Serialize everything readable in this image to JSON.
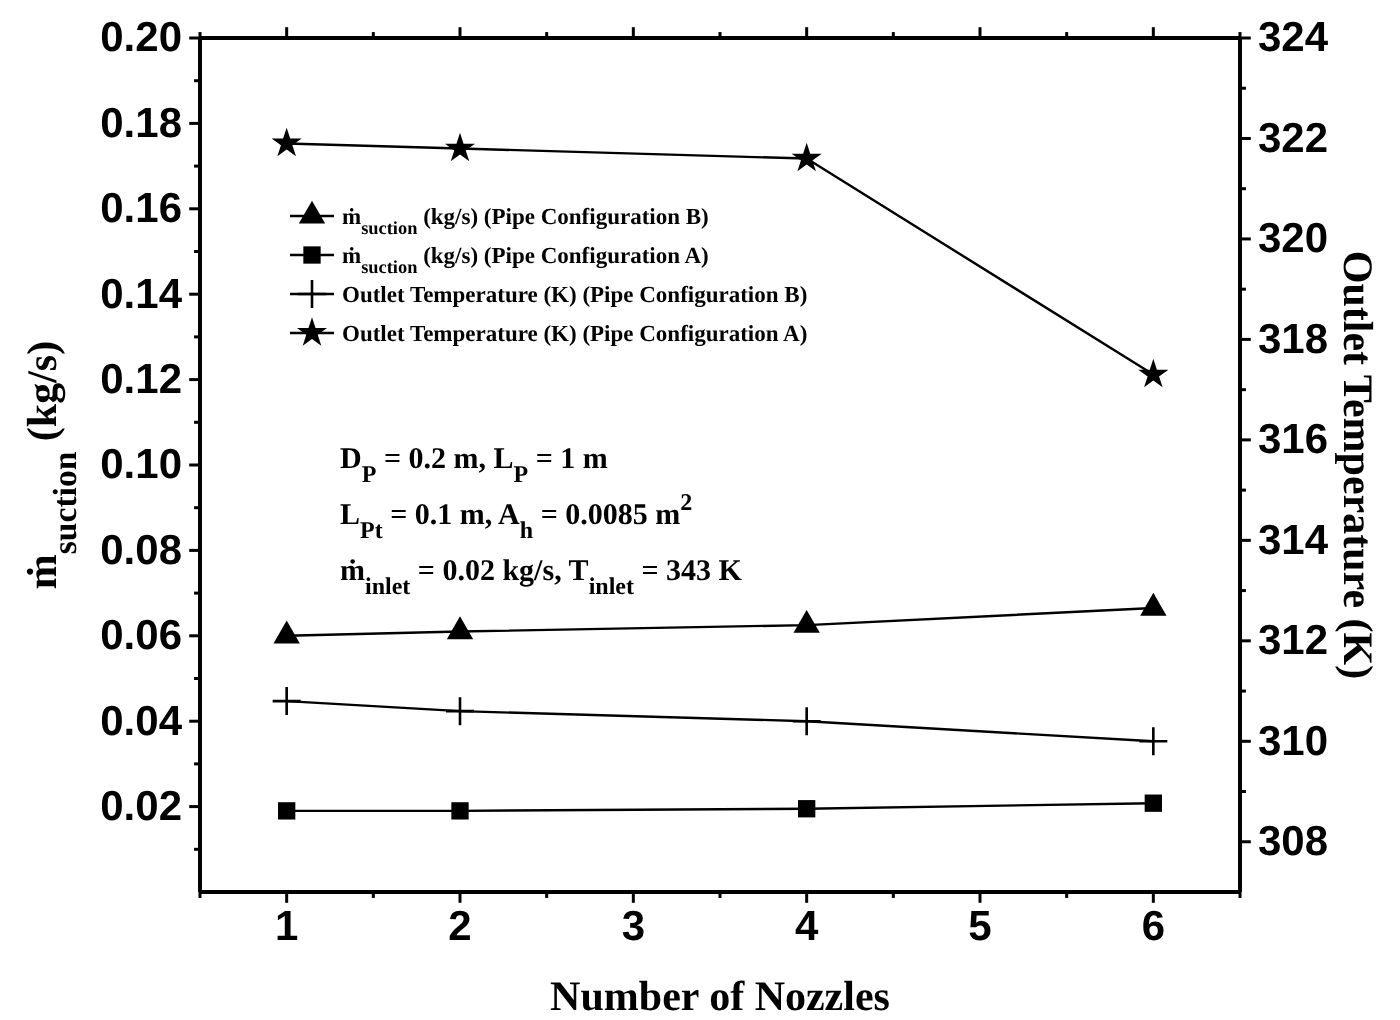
{
  "chart_data": {
    "type": "line",
    "xlabel": "Number of Nozzles",
    "ylabel": "ṁ$_{suction}$ (kg/s)",
    "y2label": "Outlet Temperature (K)",
    "x": [
      1,
      2,
      4,
      6
    ],
    "xlim": [
      0.5,
      6.5
    ],
    "xticks": [
      {
        "value": 0.5,
        "label": null
      },
      1,
      {
        "value": 1.5,
        "label": null
      },
      2,
      {
        "value": 2.5,
        "label": null
      },
      3,
      {
        "value": 3.5,
        "label": null
      },
      4,
      {
        "value": 4.5,
        "label": null
      },
      5,
      {
        "value": 5.5,
        "label": null
      },
      6,
      {
        "value": 6.5,
        "label": null
      }
    ],
    "ylim": [
      0,
      0.2
    ],
    "yticks": [
      {
        "value": 0.01,
        "label": null
      },
      0.02,
      {
        "value": 0.03,
        "label": null
      },
      0.04,
      {
        "value": 0.05,
        "label": null
      },
      0.06,
      {
        "value": 0.07,
        "label": null
      },
      0.08,
      {
        "value": 0.09,
        "label": null
      },
      {
        "value": 0.1,
        "label": "0.10"
      },
      {
        "value": 0.11,
        "label": null
      },
      0.12,
      {
        "value": 0.13,
        "label": null
      },
      0.14,
      {
        "value": 0.15,
        "label": null
      },
      0.16,
      {
        "value": 0.17,
        "label": null
      },
      0.18,
      {
        "value": 0.19,
        "label": null
      },
      {
        "value": 0.2,
        "label": "0.20"
      }
    ],
    "y2lim": [
      307,
      324
    ],
    "y2ticks": [
      308,
      {
        "value": 309,
        "label": null
      },
      310,
      {
        "value": 311,
        "label": null
      },
      312,
      {
        "value": 313,
        "label": null
      },
      314,
      {
        "value": 315,
        "label": null
      },
      316,
      {
        "value": 317,
        "label": null
      },
      318,
      {
        "value": 319,
        "label": null
      },
      320,
      {
        "value": 321,
        "label": null
      },
      322,
      {
        "value": 323,
        "label": null
      },
      324
    ],
    "series": [
      {
        "name": "ṁ$_{suction}$ (kg/s) (Pipe Configuration B)",
        "color": "#000000",
        "marker": "triangle",
        "values": [
          0.06,
          0.061,
          0.0625,
          0.0665
        ]
      },
      {
        "name": "ṁ$_{suction}$ (kg/s) (Pipe Configuration A)",
        "color": "#000000",
        "marker": "square",
        "values": [
          0.019,
          0.019,
          0.0195,
          0.0208
        ]
      },
      {
        "name": "Outlet Temperature (K) (Pipe Configuration B)",
        "color": "#000000",
        "marker": "cross",
        "axis": "y2",
        "values": [
          310.8,
          310.6,
          310.4,
          310.0
        ]
      },
      {
        "name": "Outlet Temperature (K) (Pipe Configuration A)",
        "color": "#000000",
        "marker": "star",
        "axis": "y2",
        "values": [
          321.9,
          321.8,
          321.6,
          317.3
        ]
      }
    ],
    "legend": "top left",
    "line_style": "solid",
    "annotations": [
      "D$_{P}$ = 0.2 m, L$_{P}$ = 1 m",
      "L$_{Pt}$ = 0.1 m, A$_{h}$ = 0.0085 m$^{2}$",
      "ṁ$_{inlet}$ = 0.02 kg/s, T$_{inlet}$ = 343 K"
    ]
  }
}
